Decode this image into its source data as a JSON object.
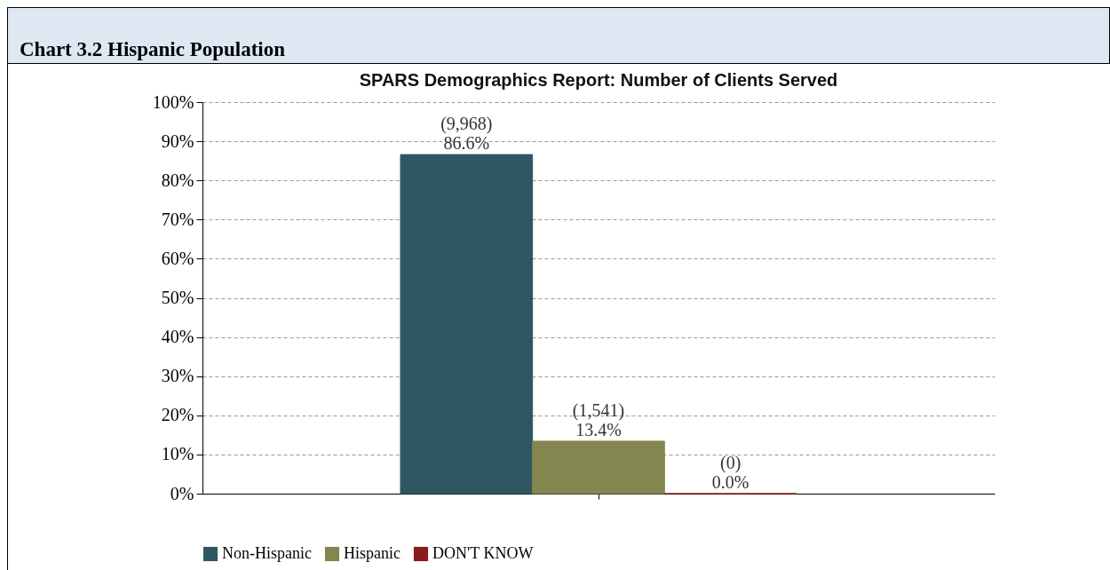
{
  "chart_data": {
    "type": "bar",
    "title": "Chart 3.2 Hispanic Population",
    "subtitle": "SPARS Demographics Report: Number of Clients Served",
    "categories": [
      null
    ],
    "series": [
      {
        "name": "Non-Hispanic",
        "color": "#2e5762",
        "values": [
          86.6
        ],
        "value_labels": [
          "(9,968)\n86.6%"
        ]
      },
      {
        "name": "Hispanic",
        "color": "#84864f",
        "values": [
          13.4
        ],
        "value_labels": [
          "(1,541)\n13.4%"
        ]
      },
      {
        "name": "DON'T KNOW",
        "color": "#8b1a1a",
        "values": [
          0.0
        ],
        "value_labels": [
          "(0)\n0.0%"
        ]
      }
    ],
    "ylim": [
      0,
      100
    ],
    "yticks": [
      {
        "value": 0,
        "label": "0%"
      },
      {
        "value": 10,
        "label": "10%"
      },
      {
        "value": 20,
        "label": "20%"
      },
      {
        "value": 30,
        "label": "30%"
      },
      {
        "value": 40,
        "label": "40%"
      },
      {
        "value": 50,
        "label": "50%"
      },
      {
        "value": 60,
        "label": "60%"
      },
      {
        "value": 70,
        "label": "70%"
      },
      {
        "value": 80,
        "label": "80%"
      },
      {
        "value": 90,
        "label": "90%"
      },
      {
        "value": 100,
        "label": "100%"
      }
    ],
    "grid": "y",
    "legend": "bottom",
    "tick_labels": "y"
  }
}
